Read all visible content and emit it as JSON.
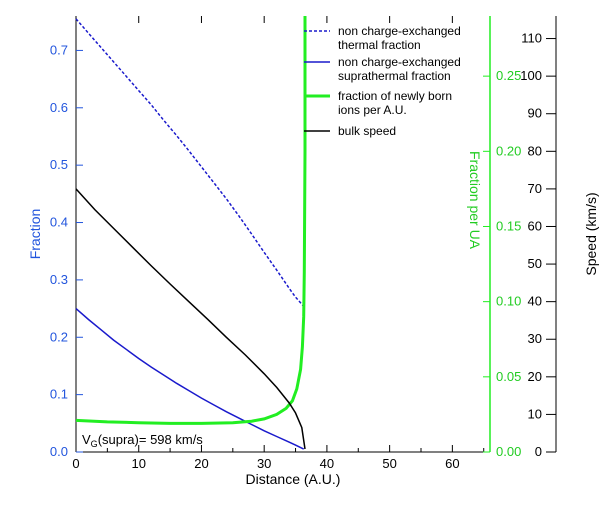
{
  "chart_data": {
    "type": "line",
    "xlabel": "Distance (A.U.)",
    "ylabel_left": "Fraction",
    "ylabel_right1": "Fraction per UA",
    "ylabel_right2": "Speed (km/s)",
    "annotation": "V",
    "annotation_sub": "G",
    "annotation_rest": "(supra)= 598 km/s",
    "xlim": [
      0,
      66
    ],
    "ylim_left": [
      0,
      0.76
    ],
    "ylim_right1": [
      0,
      0.29
    ],
    "ylim_right2": [
      0,
      116
    ],
    "x_ticks": [
      0,
      10,
      20,
      30,
      40,
      50,
      60
    ],
    "y_left_ticks": [
      0.0,
      0.1,
      0.2,
      0.3,
      0.4,
      0.5,
      0.6,
      0.7
    ],
    "y_left_tick_labels": [
      "0.0",
      "0.1",
      "0.2",
      "0.3",
      "0.4",
      "0.5",
      "0.6",
      "0.7"
    ],
    "y_right1_ticks": [
      0.0,
      0.05,
      0.1,
      0.15,
      0.2,
      0.25
    ],
    "y_right1_tick_labels": [
      "0.00",
      "0.05",
      "0.10",
      "0.15",
      "0.20",
      "0.25"
    ],
    "y_right2_ticks": [
      0,
      10,
      20,
      30,
      40,
      50,
      60,
      70,
      80,
      90,
      100,
      110
    ],
    "y_right2_tick_labels": [
      "0",
      "10",
      "20",
      "30",
      "40",
      "50",
      "60",
      "70",
      "80",
      "90",
      "100",
      "110"
    ],
    "legend_position": "top-right",
    "series": [
      {
        "name": "non charge-exchanged thermal fraction",
        "legend_lines": [
          "non charge-exchanged",
          "thermal fraction"
        ],
        "axis": "left",
        "color": "#1a1acc",
        "style": "dotted",
        "x": [
          0,
          2,
          4,
          6,
          8,
          10,
          12,
          14,
          16,
          18,
          20,
          22,
          24,
          26,
          28,
          30,
          32,
          34,
          35,
          36.2
        ],
        "y": [
          0.755,
          0.73,
          0.705,
          0.68,
          0.655,
          0.63,
          0.605,
          0.578,
          0.552,
          0.525,
          0.497,
          0.469,
          0.441,
          0.411,
          0.38,
          0.348,
          0.317,
          0.285,
          0.27,
          0.255
        ]
      },
      {
        "name": "non charge-exchanged suprathermal fraction",
        "legend_lines": [
          "non charge-exchanged",
          "suprathermal fraction"
        ],
        "axis": "left",
        "color": "#1a1acc",
        "style": "solid",
        "x": [
          0,
          2,
          4,
          6,
          8,
          10,
          12,
          14,
          16,
          18,
          20,
          22,
          24,
          26,
          28,
          30,
          32,
          34,
          35,
          36.3
        ],
        "y": [
          0.25,
          0.231,
          0.213,
          0.195,
          0.179,
          0.163,
          0.148,
          0.134,
          0.12,
          0.107,
          0.094,
          0.082,
          0.07,
          0.059,
          0.048,
          0.037,
          0.027,
          0.017,
          0.012,
          0.005
        ]
      },
      {
        "name": "fraction of newly born ions per A.U.",
        "legend_lines": [
          "fraction of newly born",
          "ions  per A.U."
        ],
        "axis": "right1",
        "color": "#22ee22",
        "style": "solid",
        "x": [
          0,
          5,
          10,
          15,
          20,
          25,
          28,
          30,
          32,
          33.5,
          34.5,
          35.2,
          35.8,
          36.1,
          36.3,
          36.4,
          36.5,
          36.5
        ],
        "y": [
          0.021,
          0.02,
          0.0195,
          0.019,
          0.019,
          0.0195,
          0.0205,
          0.022,
          0.025,
          0.029,
          0.034,
          0.042,
          0.055,
          0.07,
          0.09,
          0.12,
          0.2,
          0.29
        ]
      },
      {
        "name": "bulk speed",
        "legend_lines": [
          "bulk speed"
        ],
        "axis": "right2",
        "color": "#000000",
        "style": "solid",
        "x": [
          0,
          3,
          6,
          9,
          12,
          15,
          18,
          21,
          24,
          27,
          30,
          32,
          34,
          35,
          36,
          36.5
        ],
        "y": [
          70,
          64.5,
          59.5,
          54.5,
          49.5,
          44.7,
          40,
          35.3,
          30.5,
          25.8,
          20.8,
          17.2,
          13,
          10.4,
          6.5,
          0.8
        ]
      }
    ]
  }
}
